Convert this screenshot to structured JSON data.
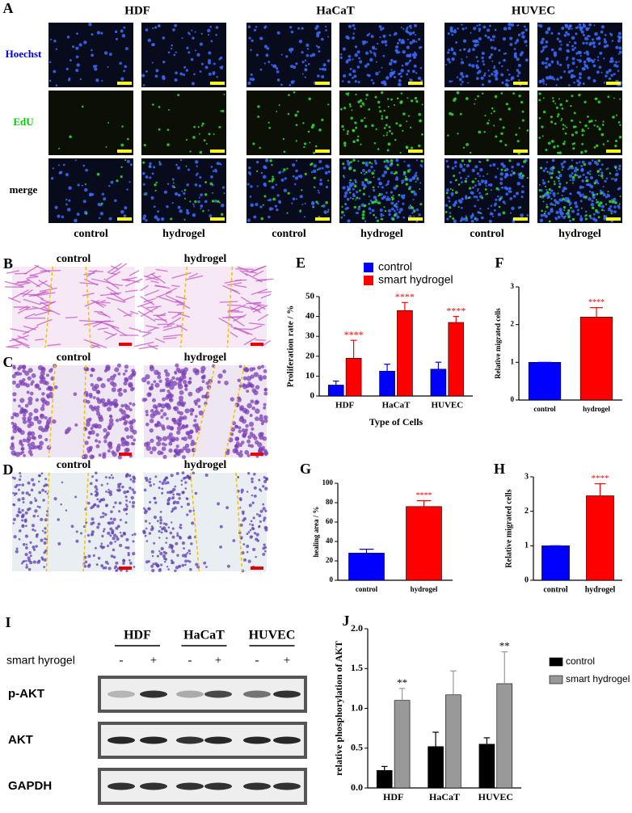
{
  "panel_a": {
    "label": "A",
    "columns": [
      "HDF",
      "HaCaT",
      "HUVEC"
    ],
    "rows": [
      "Hoechst",
      "EdU",
      "merge"
    ],
    "conditions": [
      "control",
      "hydrogel",
      "control",
      "hydrogel",
      "control",
      "hydrogel"
    ]
  },
  "scratch": [
    {
      "label": "B",
      "conditions": [
        "control",
        "hydrogel"
      ]
    },
    {
      "label": "C",
      "conditions": [
        "control",
        "hydrogel"
      ]
    },
    {
      "label": "D",
      "conditions": [
        "control",
        "hydrogel"
      ]
    }
  ],
  "blot": {
    "label": "I",
    "cells": [
      "HDF",
      "HaCaT",
      "HUVEC"
    ],
    "treatment_label": "smart hyrogel",
    "signs": [
      "-",
      "+",
      "-",
      "+",
      "-",
      "+"
    ],
    "proteins": [
      "p-AKT",
      "AKT",
      "GAPDH"
    ]
  },
  "chart_data": [
    {
      "type": "bar",
      "label": "E",
      "ylabel": "Proliferation rate / %",
      "xlabel": "Type of Cells",
      "categories": [
        "HDF",
        "HaCaT",
        "HUVEC"
      ],
      "series": [
        {
          "name": "control",
          "color": "#0000ff",
          "values": [
            5.5,
            12.5,
            13.5
          ],
          "errors": [
            2,
            3.5,
            3.5
          ]
        },
        {
          "name": "smart hydrogel",
          "color": "#ff0000",
          "values": [
            19,
            43,
            37
          ],
          "errors": [
            9,
            4,
            3
          ],
          "significance": [
            "****",
            "****",
            "****"
          ]
        }
      ],
      "significance_color": "#ff0000",
      "ylim": [
        0,
        50
      ],
      "yticks": [
        0,
        10,
        20,
        30,
        40,
        50
      ],
      "legend": "top"
    },
    {
      "type": "bar",
      "label": "F",
      "ylabel": "Relative migrated cells",
      "categories": [
        "control",
        "hydrogel"
      ],
      "values": [
        1,
        2.2
      ],
      "errors": [
        0,
        0.25
      ],
      "colors": [
        "#0000ff",
        "#ff0000"
      ],
      "significance": [
        null,
        "****"
      ],
      "significance_color": "#ff0000",
      "ylim": [
        0,
        3
      ],
      "yticks": [
        0,
        1,
        2,
        3
      ]
    },
    {
      "type": "bar",
      "label": "G",
      "ylabel": "healing area / %",
      "categories": [
        "control",
        "hydrogel"
      ],
      "values": [
        28,
        76
      ],
      "errors": [
        4,
        6
      ],
      "colors": [
        "#0000ff",
        "#ff0000"
      ],
      "significance": [
        null,
        "****"
      ],
      "significance_color": "#ff0000",
      "ylim": [
        0,
        100
      ],
      "yticks": [
        0,
        20,
        40,
        60,
        80,
        100
      ]
    },
    {
      "type": "bar",
      "label": "H",
      "ylabel": "Relative migrated cells",
      "categories": [
        "control",
        "hydrogel"
      ],
      "values": [
        1,
        2.45
      ],
      "errors": [
        0,
        0.35
      ],
      "colors": [
        "#0000ff",
        "#ff0000"
      ],
      "significance": [
        null,
        "****"
      ],
      "significance_color": "#ff0000",
      "ylim": [
        0,
        3
      ],
      "yticks": [
        0,
        1,
        2,
        3
      ]
    },
    {
      "type": "bar",
      "label": "J",
      "ylabel": "relative phosphorylation of AKT",
      "categories": [
        "HDF",
        "HaCaT",
        "HUVEC"
      ],
      "series": [
        {
          "name": "control",
          "color": "#000000",
          "values": [
            0.22,
            0.52,
            0.55
          ],
          "errors": [
            0.05,
            0.18,
            0.08
          ]
        },
        {
          "name": "smart hydrogel",
          "color": "#999999",
          "values": [
            1.1,
            1.17,
            1.31
          ],
          "errors": [
            0.15,
            0.3,
            0.4
          ],
          "significance": [
            "**",
            null,
            "**"
          ]
        }
      ],
      "significance_color": "#000000",
      "ylim": [
        0,
        2
      ],
      "yticks": [
        {
          "value": 0,
          "label": "0.0"
        },
        {
          "value": 0.5,
          "label": "0.5"
        },
        {
          "value": 1,
          "label": "1.0"
        },
        {
          "value": 1.5,
          "label": "1.5"
        },
        {
          "value": 2,
          "label": "2.0"
        }
      ],
      "legend": "right"
    }
  ]
}
